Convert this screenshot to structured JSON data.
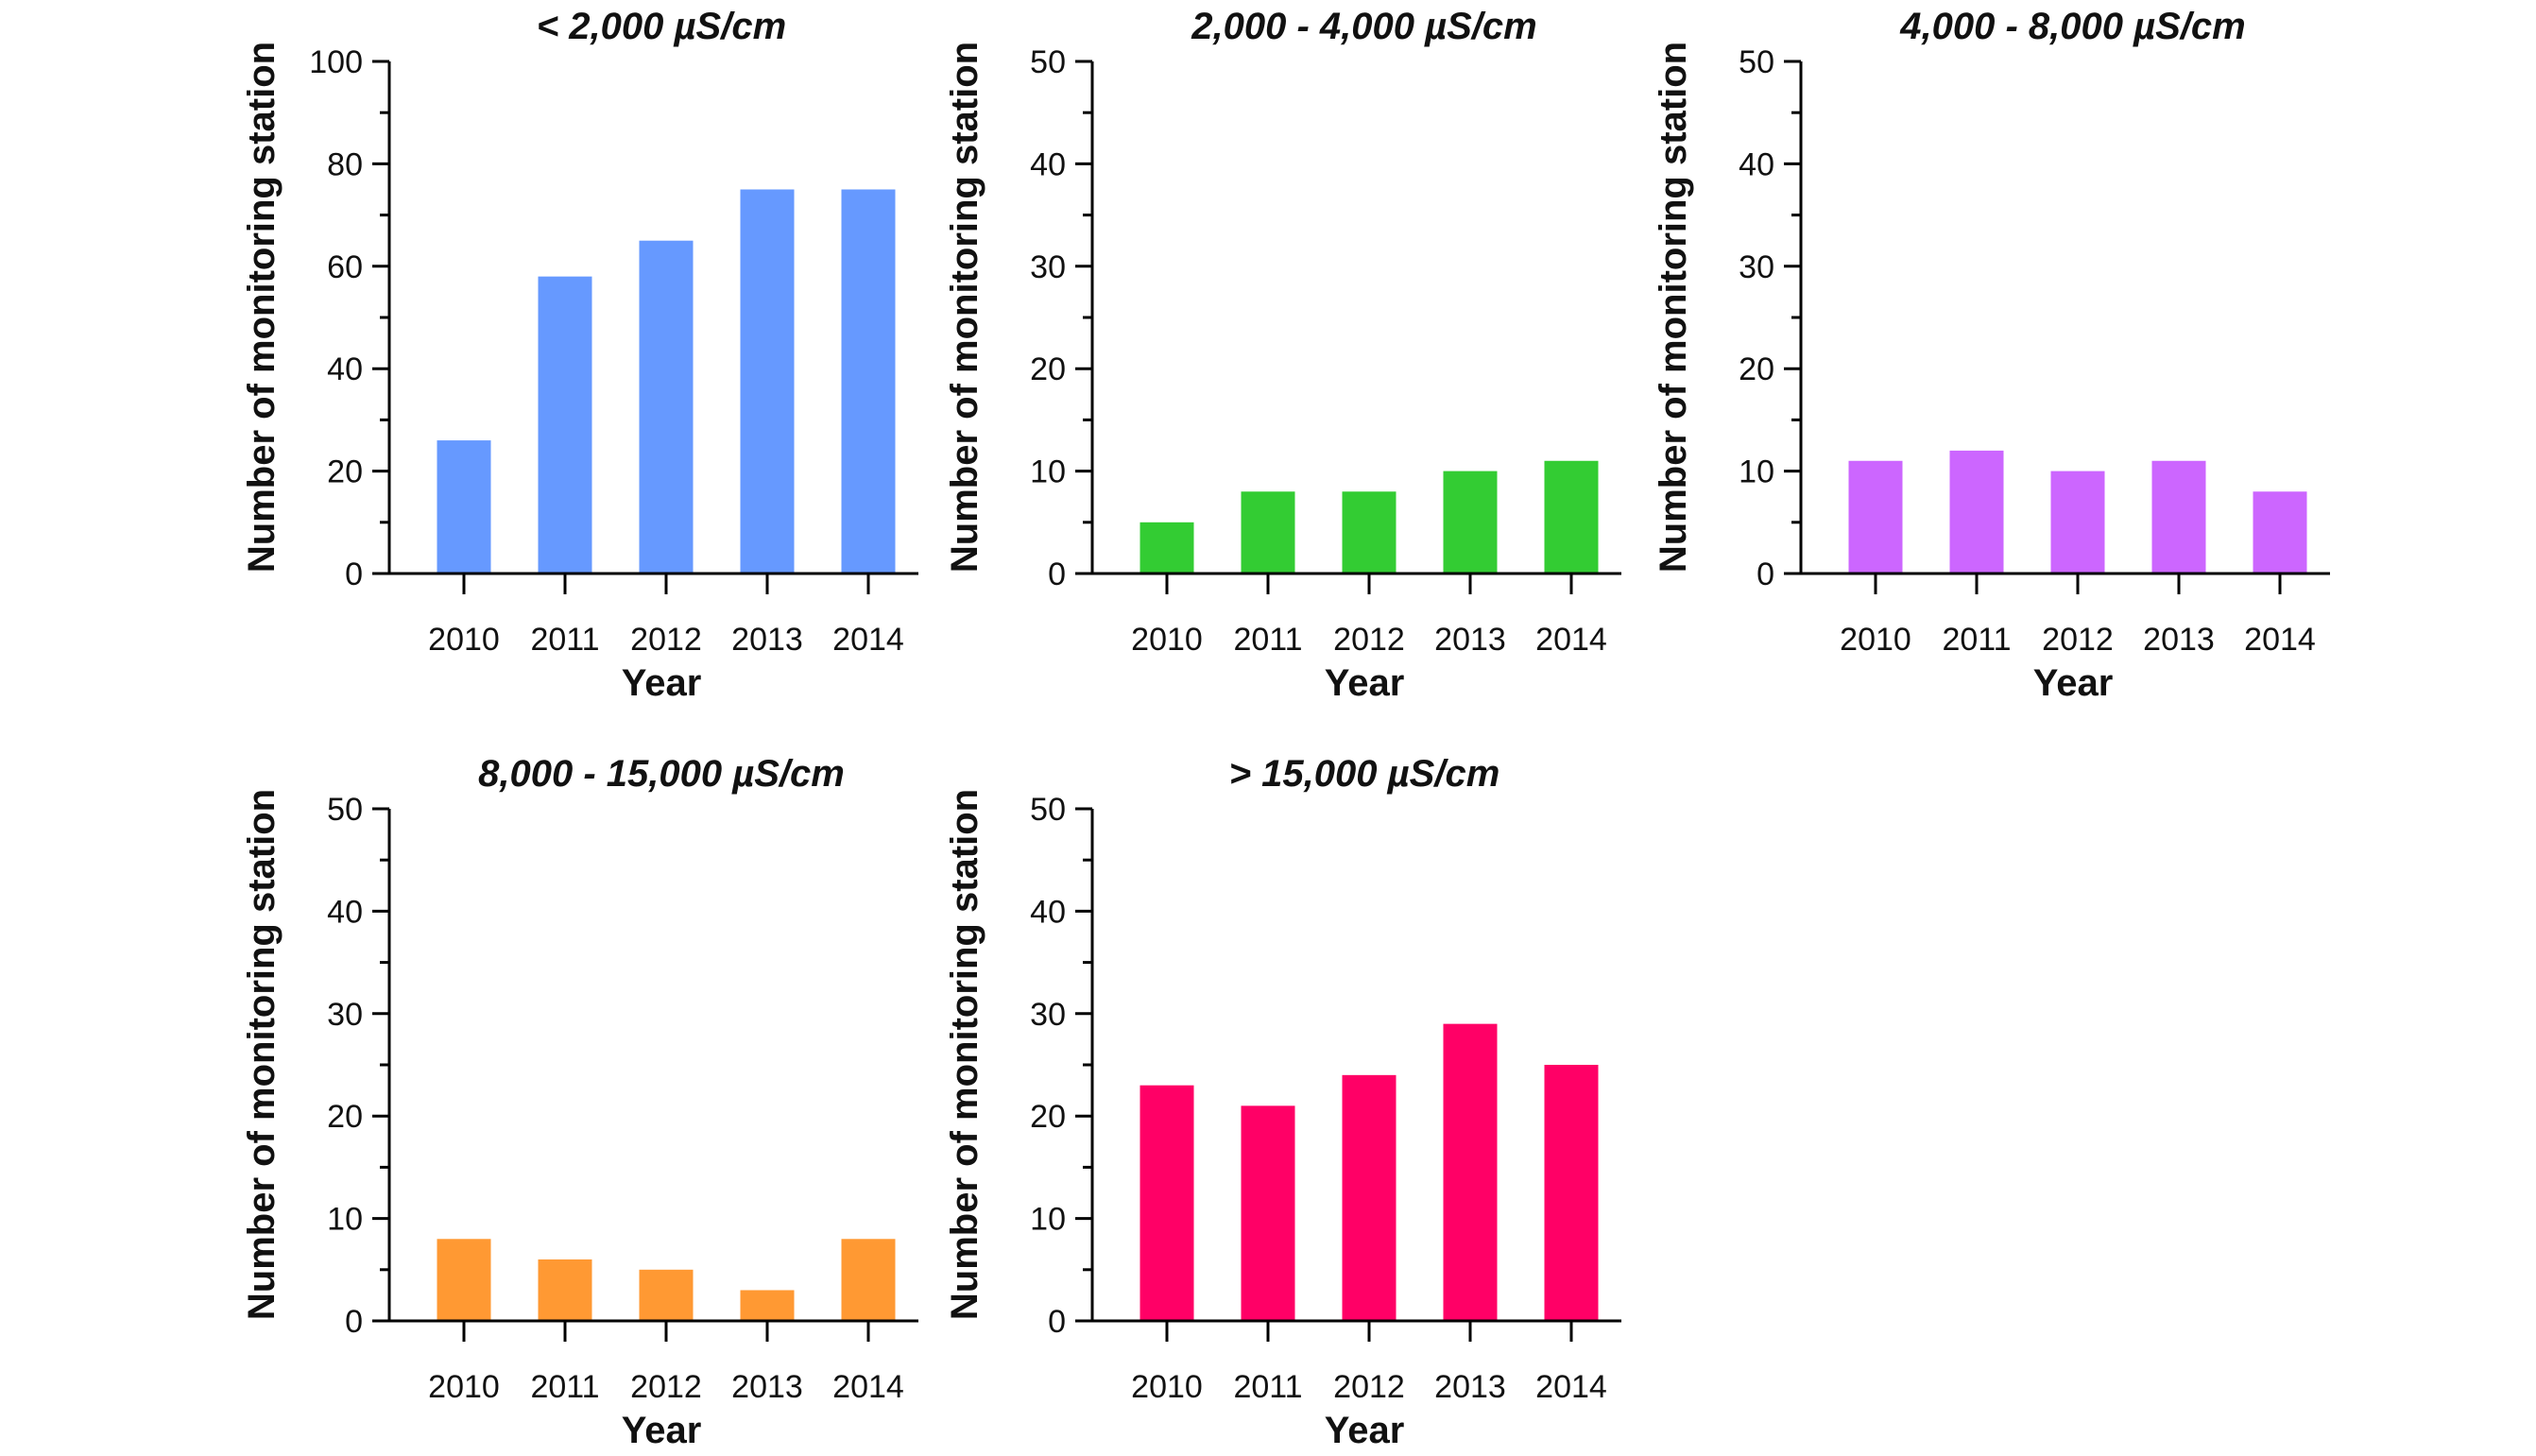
{
  "chart_data": [
    {
      "type": "bar",
      "title": "< 2,000 µS/cm",
      "xlabel": "Year",
      "ylabel": "Number of monitoring station",
      "categories": [
        "2010",
        "2011",
        "2012",
        "2013",
        "2014"
      ],
      "values": [
        26,
        58,
        65,
        75,
        75
      ],
      "ylim": [
        0,
        100
      ],
      "yticks": [
        0,
        20,
        40,
        60,
        80,
        100
      ],
      "color": "#6699ff"
    },
    {
      "type": "bar",
      "title": "2,000 - 4,000 µS/cm",
      "xlabel": "Year",
      "ylabel": "Number of monitoring station",
      "categories": [
        "2010",
        "2011",
        "2012",
        "2013",
        "2014"
      ],
      "values": [
        5,
        8,
        8,
        10,
        11
      ],
      "ylim": [
        0,
        50
      ],
      "yticks": [
        0,
        10,
        20,
        30,
        40,
        50
      ],
      "color": "#33cc33"
    },
    {
      "type": "bar",
      "title": "4,000 - 8,000 µS/cm",
      "xlabel": "Year",
      "ylabel": "Number of monitoring station",
      "categories": [
        "2010",
        "2011",
        "2012",
        "2013",
        "2014"
      ],
      "values": [
        11,
        12,
        10,
        11,
        8
      ],
      "ylim": [
        0,
        50
      ],
      "yticks": [
        0,
        10,
        20,
        30,
        40,
        50
      ],
      "color": "#cc66ff"
    },
    {
      "type": "bar",
      "title": "8,000 - 15,000 µS/cm",
      "xlabel": "Year",
      "ylabel": "Number of monitoring station",
      "categories": [
        "2010",
        "2011",
        "2012",
        "2013",
        "2014"
      ],
      "values": [
        8,
        6,
        5,
        3,
        8
      ],
      "ylim": [
        0,
        50
      ],
      "yticks": [
        0,
        10,
        20,
        30,
        40,
        50
      ],
      "color": "#ff9933"
    },
    {
      "type": "bar",
      "title": "> 15,000 µS/cm",
      "xlabel": "Year",
      "ylabel": "Number of monitoring station",
      "categories": [
        "2010",
        "2011",
        "2012",
        "2013",
        "2014"
      ],
      "values": [
        23,
        21,
        24,
        29,
        25
      ],
      "ylim": [
        0,
        50
      ],
      "yticks": [
        0,
        10,
        20,
        30,
        40,
        50
      ],
      "color": "#ff0066"
    }
  ]
}
